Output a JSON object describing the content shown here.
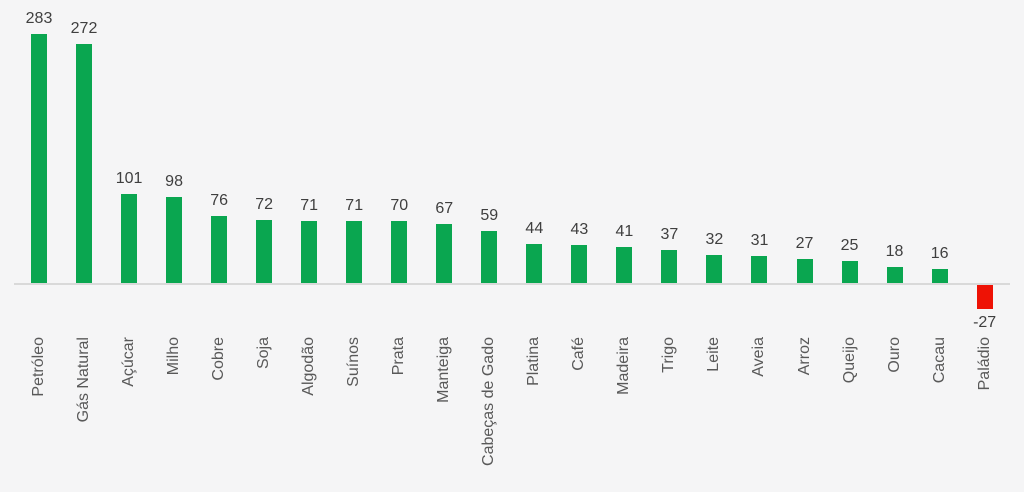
{
  "chart_data": {
    "type": "bar",
    "categories": [
      "Petróleo",
      "Gás Natural",
      "Açúcar",
      "Milho",
      "Cobre",
      "Soja",
      "Algodão",
      "Suínos",
      "Prata",
      "Manteiga",
      "Cabeças de Gado",
      "Platina",
      "Café",
      "Madeira",
      "Trigo",
      "Leite",
      "Aveia",
      "Arroz",
      "Queijo",
      "Ouro",
      "Cacau",
      "Paládio"
    ],
    "values": [
      283,
      272,
      101,
      98,
      76,
      72,
      71,
      71,
      70,
      67,
      59,
      44,
      43,
      41,
      37,
      32,
      31,
      27,
      25,
      18,
      16,
      -27
    ],
    "title": "",
    "xlabel": "",
    "ylabel": "",
    "ylim": [
      -60,
      300
    ],
    "grid": false,
    "legend_position": "none",
    "data_labels": true,
    "category_label_rotation": -90,
    "colors": {
      "positive_bar": "#0aa650",
      "negative_bar": "#ee1205",
      "value_label": "#3f3f3f",
      "category_label": "#595959",
      "axis_line": "#d9d9d9",
      "background": "#f5f5f6"
    }
  }
}
